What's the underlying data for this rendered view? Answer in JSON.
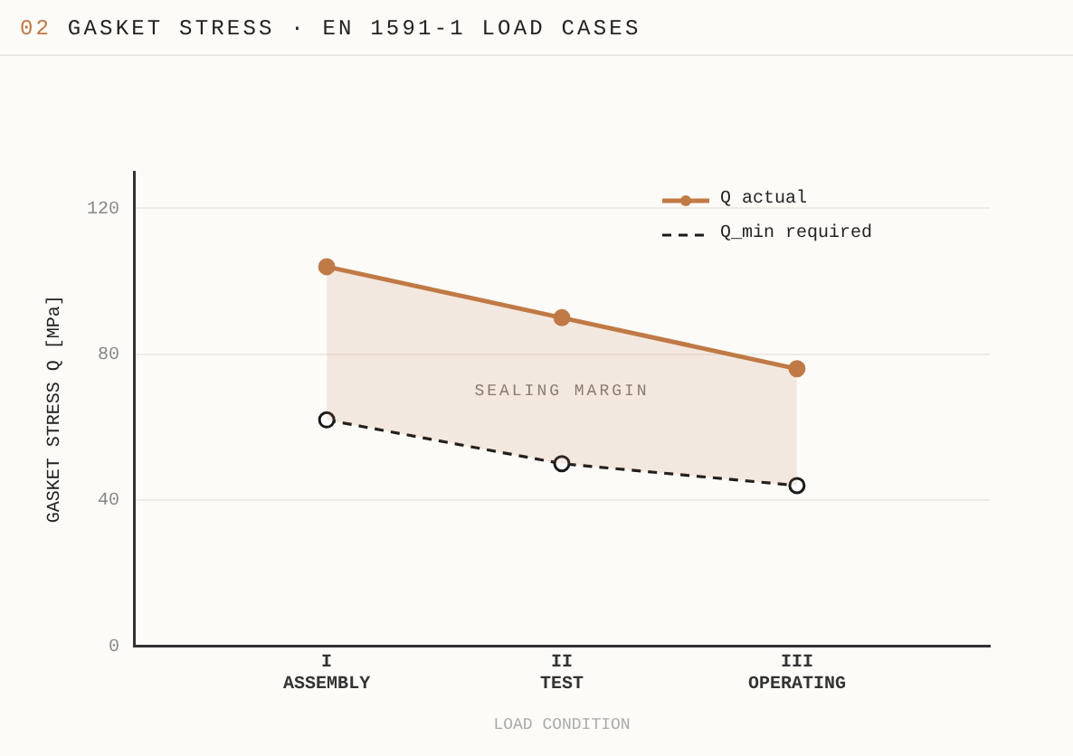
{
  "chart_data": {
    "type": "line",
    "title": "02 GASKET STRESS · EN 1591-1 LOAD CASES",
    "xlabel": "LOAD CONDITION",
    "ylabel": "GASKET STRESS Q [MPa]",
    "categories": [
      "I\nASSEMBLY",
      "II\nTEST",
      "III\nOPERATING"
    ],
    "series": [
      {
        "name": "Q actual",
        "color": "#c07a45",
        "values": [
          104,
          90,
          76
        ],
        "line_style": "solid",
        "lower": [
          62,
          50,
          44
        ],
        "upper": [
          104,
          90,
          76
        ]
      },
      {
        "name": "Q_min required",
        "color": "#1a1a1a",
        "values": [
          62,
          50,
          44
        ],
        "line_style": "dashed"
      }
    ],
    "ylim": [
      0,
      130
    ],
    "yticks": [
      0,
      40,
      80,
      120
    ],
    "grid": "y",
    "legend": "top right",
    "marker": "circle",
    "annotations": [
      "SEALING MARGIN"
    ]
  }
}
